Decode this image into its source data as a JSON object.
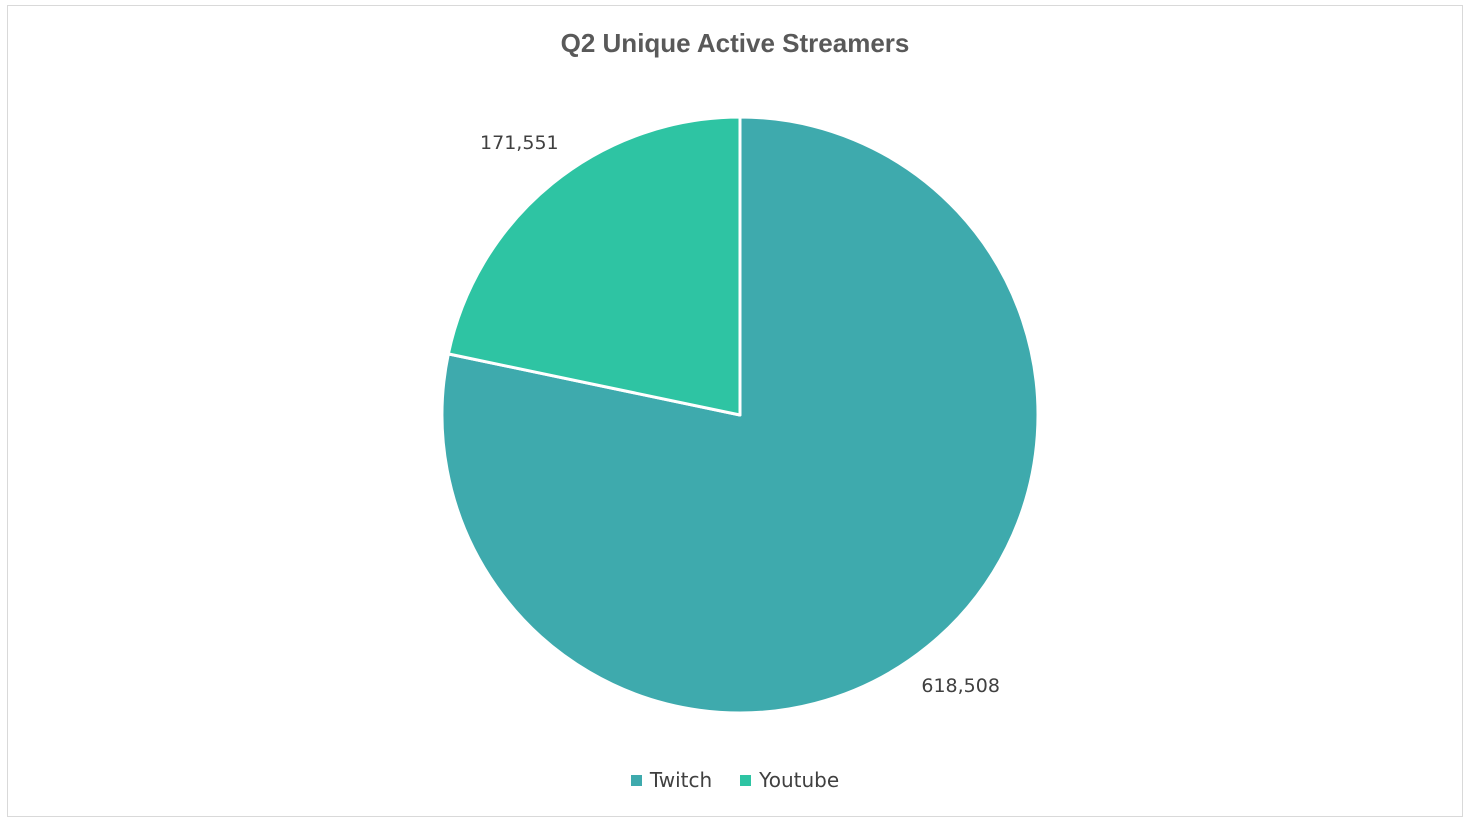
{
  "chart_data": {
    "type": "pie",
    "title": "Q2 Unique Active Streamers",
    "categories": [
      "Twitch",
      "Youtube"
    ],
    "values": [
      618508,
      171551
    ],
    "data_labels": [
      "618,508",
      "171,551"
    ],
    "colors": [
      "#3eaaad",
      "#2ec4a3"
    ],
    "legend_position": "bottom"
  }
}
